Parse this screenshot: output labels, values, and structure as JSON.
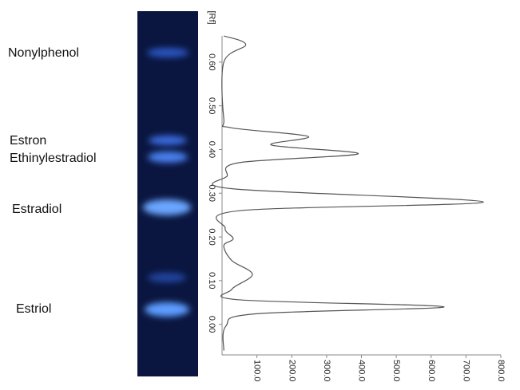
{
  "chart_data": {
    "type": "line",
    "x_label": "[Rf]",
    "band_labels": [
      "Nonylphenol",
      "Estron",
      "Ethinylestradiol",
      "Estradiol",
      "Estriol"
    ],
    "x": [
      0.66,
      0.64,
      0.6,
      0.47,
      0.45,
      0.43,
      0.41,
      0.39,
      0.37,
      0.34,
      0.31,
      0.28,
      0.26,
      0.22,
      0.196,
      0.18,
      0.146,
      0.114,
      0.08,
      0.056,
      0.04,
      0.024,
      -0.004,
      -0.06
    ],
    "values": [
      5,
      68,
      5,
      5,
      25,
      247,
      142,
      390,
      50,
      15,
      32,
      750,
      50,
      9,
      32,
      5,
      28,
      87,
      28,
      50,
      637,
      96,
      11,
      5
    ],
    "color": "#555555",
    "xlim": [
      -0.07,
      0.66
    ],
    "xticks": [
      {
        "value": 0,
        "label": "0.00"
      },
      {
        "value": 0.1,
        "label": "0.10"
      },
      {
        "value": 0.2,
        "label": "0.20"
      },
      {
        "value": 0.3,
        "label": "0.30"
      },
      {
        "value": 0.4,
        "label": "0.40"
      },
      {
        "value": 0.5,
        "label": "0.50"
      },
      {
        "value": 0.6,
        "label": "0.60"
      }
    ],
    "ylim": [
      0,
      800
    ],
    "yticks": [
      {
        "value": 100,
        "label": "100.0"
      },
      {
        "value": 200,
        "label": "200.0"
      },
      {
        "value": 300,
        "label": "300.0"
      },
      {
        "value": 400,
        "label": "400.0"
      },
      {
        "value": 500,
        "label": "500.0"
      },
      {
        "value": 600,
        "label": "600.0"
      },
      {
        "value": 700,
        "label": "700.0"
      },
      {
        "value": 800,
        "label": "800.0"
      }
    ]
  }
}
